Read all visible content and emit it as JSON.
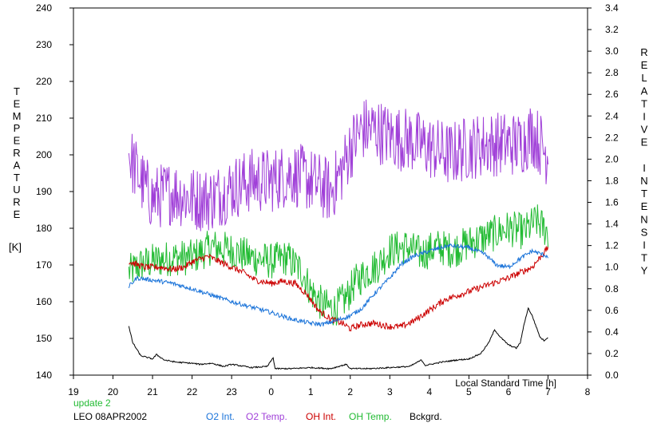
{
  "chart_data": {
    "type": "line",
    "title": "",
    "xlabel": "Local Standard Time [h]",
    "ylabel_left": "TEMPERATURE [K]",
    "ylabel_left_letters": [
      "T",
      "E",
      "M",
      "P",
      "E",
      "R",
      "A",
      "T",
      "U",
      "R",
      "E"
    ],
    "ylabel_left_unit": "[K]",
    "ylabel_right": "RELATIVE INTENSITY",
    "ylabel_right_letters": [
      "R",
      "E",
      "L",
      "A",
      "T",
      "I",
      "V",
      "E",
      "",
      "I",
      "N",
      "T",
      "E",
      "N",
      "S",
      "I",
      "T",
      "Y"
    ],
    "xlim": [
      19,
      32
    ],
    "ylim_left": [
      140,
      240
    ],
    "ylim_right": [
      0,
      3.4
    ],
    "x_ticks": [
      19,
      20,
      21,
      22,
      23,
      24,
      25,
      26,
      27,
      28,
      29,
      30,
      31,
      32
    ],
    "x_tick_labels": [
      "19",
      "20",
      "21",
      "22",
      "23",
      "0",
      "1",
      "2",
      "3",
      "4",
      "5",
      "6",
      "7",
      "8"
    ],
    "y_left_ticks": [
      "140",
      "150",
      "160",
      "170",
      "180",
      "190",
      "200",
      "210",
      "220",
      "230",
      "240"
    ],
    "y_right_ticks": [
      "0.0",
      "0.2",
      "0.4",
      "0.6",
      "0.8",
      "1.0",
      "1.2",
      "1.4",
      "1.6",
      "1.8",
      "2.0",
      "2.2",
      "2.4",
      "2.6",
      "2.8",
      "3.0",
      "3.2",
      "3.4"
    ],
    "grid": false,
    "legend_placement": "bottom",
    "series": [
      {
        "name": "O2 Int.",
        "color": "#1a73d9",
        "axis": "right",
        "noise": 0.02,
        "points": [
          [
            20.4,
            0.82
          ],
          [
            20.6,
            0.9
          ],
          [
            21.0,
            0.88
          ],
          [
            21.5,
            0.85
          ],
          [
            22.0,
            0.8
          ],
          [
            22.5,
            0.74
          ],
          [
            23.0,
            0.68
          ],
          [
            23.5,
            0.63
          ],
          [
            24.0,
            0.58
          ],
          [
            24.5,
            0.52
          ],
          [
            25.0,
            0.48
          ],
          [
            25.3,
            0.47
          ],
          [
            25.6,
            0.5
          ],
          [
            26.0,
            0.55
          ],
          [
            26.3,
            0.62
          ],
          [
            26.6,
            0.75
          ],
          [
            27.0,
            0.9
          ],
          [
            27.3,
            1.03
          ],
          [
            27.6,
            1.1
          ],
          [
            28.0,
            1.15
          ],
          [
            28.5,
            1.2
          ],
          [
            29.0,
            1.18
          ],
          [
            29.4,
            1.12
          ],
          [
            29.7,
            1.02
          ],
          [
            30.0,
            1.0
          ],
          [
            30.3,
            1.08
          ],
          [
            30.6,
            1.15
          ],
          [
            31.0,
            1.1
          ]
        ]
      },
      {
        "name": "O2 Temp.",
        "color": "#a040d8",
        "axis": "left",
        "noise": 9,
        "points": [
          [
            20.4,
            200
          ],
          [
            20.7,
            193
          ],
          [
            21.0,
            188
          ],
          [
            21.5,
            190
          ],
          [
            22.0,
            188
          ],
          [
            22.5,
            188
          ],
          [
            23.0,
            191
          ],
          [
            23.5,
            193
          ],
          [
            24.0,
            193
          ],
          [
            24.5,
            195
          ],
          [
            25.0,
            193
          ],
          [
            25.5,
            190
          ],
          [
            25.8,
            196
          ],
          [
            26.0,
            202
          ],
          [
            26.3,
            207
          ],
          [
            26.6,
            207
          ],
          [
            27.0,
            205
          ],
          [
            27.5,
            204
          ],
          [
            28.0,
            202
          ],
          [
            28.5,
            200
          ],
          [
            29.0,
            202
          ],
          [
            29.5,
            203
          ],
          [
            30.0,
            203
          ],
          [
            30.3,
            203
          ],
          [
            30.6,
            206
          ],
          [
            31.0,
            200
          ]
        ]
      },
      {
        "name": "OH Int.",
        "color": "#cc0000",
        "axis": "right",
        "noise": 0.03,
        "points": [
          [
            20.4,
            1.05
          ],
          [
            20.8,
            1.0
          ],
          [
            21.2,
            1.0
          ],
          [
            21.5,
            0.98
          ],
          [
            21.8,
            1.0
          ],
          [
            22.0,
            1.05
          ],
          [
            22.4,
            1.1
          ],
          [
            22.7,
            1.05
          ],
          [
            23.0,
            1.0
          ],
          [
            23.3,
            0.95
          ],
          [
            23.6,
            0.88
          ],
          [
            24.0,
            0.85
          ],
          [
            24.3,
            0.87
          ],
          [
            24.6,
            0.85
          ],
          [
            24.9,
            0.75
          ],
          [
            25.2,
            0.6
          ],
          [
            25.5,
            0.52
          ],
          [
            25.8,
            0.48
          ],
          [
            26.0,
            0.43
          ],
          [
            26.3,
            0.47
          ],
          [
            26.6,
            0.48
          ],
          [
            27.0,
            0.45
          ],
          [
            27.3,
            0.45
          ],
          [
            27.6,
            0.5
          ],
          [
            28.0,
            0.6
          ],
          [
            28.4,
            0.7
          ],
          [
            28.8,
            0.75
          ],
          [
            29.2,
            0.8
          ],
          [
            29.6,
            0.85
          ],
          [
            30.0,
            0.9
          ],
          [
            30.3,
            0.95
          ],
          [
            30.6,
            1.0
          ],
          [
            31.0,
            1.18
          ]
        ]
      },
      {
        "name": "OH Temp.",
        "color": "#22bb33",
        "axis": "left",
        "noise": 5,
        "points": [
          [
            20.4,
            168
          ],
          [
            20.7,
            170
          ],
          [
            21.0,
            171
          ],
          [
            21.5,
            172
          ],
          [
            22.0,
            172
          ],
          [
            22.5,
            175
          ],
          [
            23.0,
            174
          ],
          [
            23.5,
            172
          ],
          [
            24.0,
            171
          ],
          [
            24.4,
            172
          ],
          [
            24.8,
            168
          ],
          [
            25.0,
            163
          ],
          [
            25.3,
            159
          ],
          [
            25.6,
            158
          ],
          [
            25.9,
            161
          ],
          [
            26.1,
            165
          ],
          [
            26.4,
            168
          ],
          [
            26.7,
            170
          ],
          [
            27.0,
            174
          ],
          [
            27.4,
            175
          ],
          [
            27.8,
            173
          ],
          [
            28.2,
            175
          ],
          [
            28.6,
            174
          ],
          [
            29.0,
            176
          ],
          [
            29.5,
            178
          ],
          [
            30.0,
            180
          ],
          [
            30.4,
            179
          ],
          [
            30.7,
            182
          ],
          [
            31.0,
            179
          ]
        ]
      },
      {
        "name": "Bckgrd.",
        "color": "#000000",
        "axis": "right",
        "noise": 0.006,
        "points": [
          [
            20.4,
            0.45
          ],
          [
            20.5,
            0.3
          ],
          [
            20.7,
            0.18
          ],
          [
            21.0,
            0.15
          ],
          [
            21.1,
            0.19
          ],
          [
            21.3,
            0.14
          ],
          [
            21.6,
            0.12
          ],
          [
            22.0,
            0.11
          ],
          [
            22.2,
            0.1
          ],
          [
            22.5,
            0.11
          ],
          [
            22.8,
            0.08
          ],
          [
            23.0,
            0.1
          ],
          [
            23.5,
            0.07
          ],
          [
            23.9,
            0.08
          ],
          [
            24.05,
            0.16
          ],
          [
            24.1,
            0.06
          ],
          [
            24.5,
            0.06
          ],
          [
            25.0,
            0.07
          ],
          [
            25.5,
            0.06
          ],
          [
            25.9,
            0.1
          ],
          [
            26.0,
            0.06
          ],
          [
            26.5,
            0.06
          ],
          [
            27.0,
            0.07
          ],
          [
            27.5,
            0.08
          ],
          [
            27.8,
            0.14
          ],
          [
            27.9,
            0.09
          ],
          [
            28.3,
            0.12
          ],
          [
            28.7,
            0.14
          ],
          [
            29.0,
            0.15
          ],
          [
            29.3,
            0.2
          ],
          [
            29.5,
            0.3
          ],
          [
            29.65,
            0.42
          ],
          [
            29.8,
            0.35
          ],
          [
            30.0,
            0.28
          ],
          [
            30.2,
            0.25
          ],
          [
            30.3,
            0.3
          ],
          [
            30.4,
            0.48
          ],
          [
            30.5,
            0.62
          ],
          [
            30.6,
            0.55
          ],
          [
            30.8,
            0.35
          ],
          [
            30.9,
            0.32
          ],
          [
            31.0,
            0.35
          ]
        ]
      }
    ]
  },
  "notes": {
    "update": "update 2",
    "update_color": "#22bb33",
    "site_date": "LEO 08APR2002"
  }
}
